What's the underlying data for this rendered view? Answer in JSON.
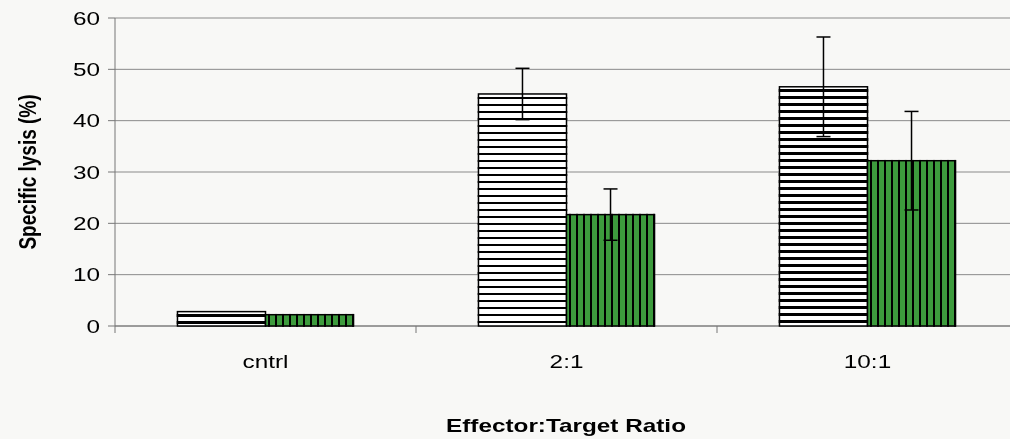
{
  "chart_data": {
    "type": "bar",
    "ylabel": "Specific lysis (%)",
    "xlabel": "Effector:Target Ratio",
    "categories": [
      "cntrl",
      "2:1",
      "10:1"
    ],
    "series": [
      {
        "color": "#ffffff",
        "values": [
          2.8,
          45.2,
          46.6
        ],
        "errors": [
          null,
          5,
          9.7
        ]
      },
      {
        "color": "#3d9b3d",
        "values": [
          2.2,
          21.7,
          32.2
        ],
        "errors": [
          null,
          5,
          9.6
        ]
      }
    ],
    "ylim": [
      0,
      60
    ],
    "yticks": [
      0,
      10,
      20,
      30,
      40,
      50,
      60
    ],
    "grid": "y"
  }
}
